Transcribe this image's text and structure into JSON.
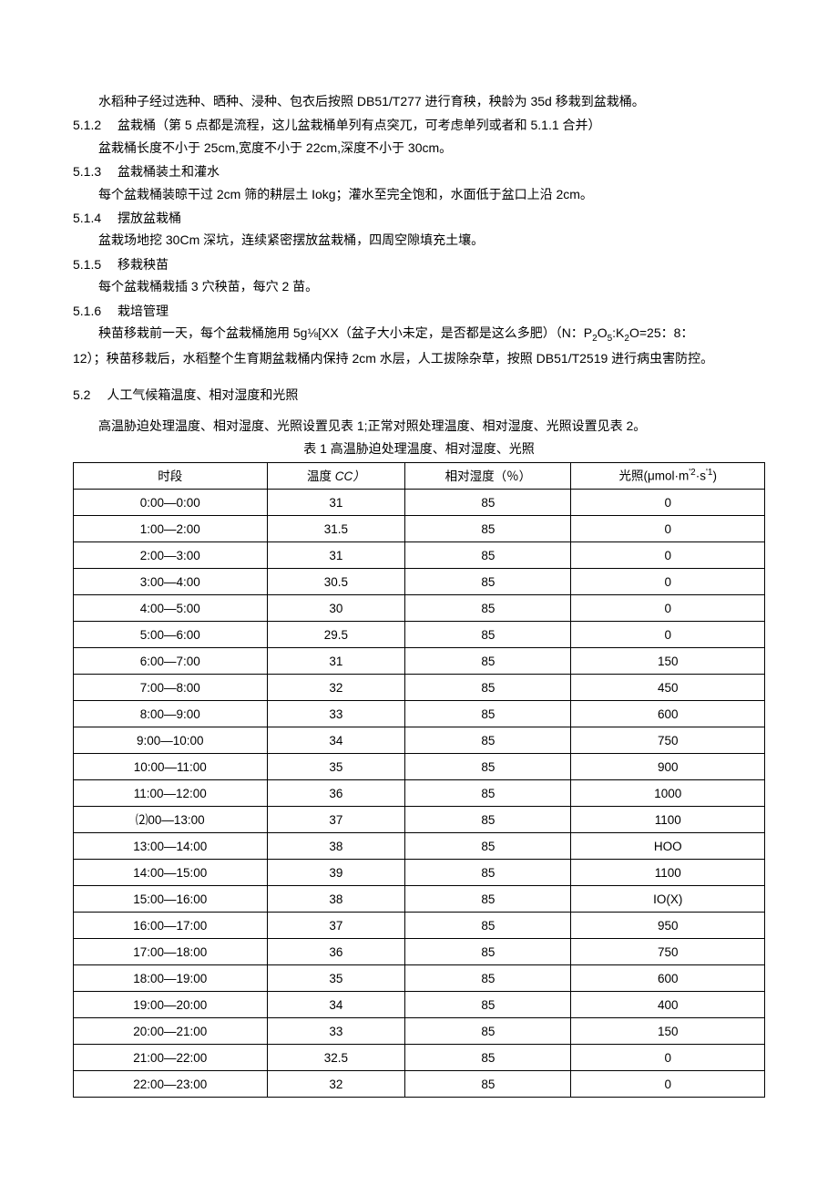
{
  "p_intro": "水稻种子经过选种、晒种、浸种、包衣后按照 DB51/T277 进行育秧，秧龄为 35d 移栽到盆栽桶。",
  "s512_num": "5.1.2",
  "s512_title": "盆栽桶（第 5 点都是流程，这儿盆栽桶单列有点突兀，可考虑单列或者和 5.1.1 合并）",
  "s512_body": "盆栽桶长度不小于 25cm,宽度不小于 22cm,深度不小于 30cm。",
  "s513_num": "5.1.3",
  "s513_title": "盆栽桶装土和灌水",
  "s513_body": "每个盆栽桶装晾干过 2cm 筛的耕层土 Iokg；灌水至完全饱和，水面低于盆口上沿 2cm。",
  "s514_num": "5.1.4",
  "s514_title": "摆放盆栽桶",
  "s514_body": "盆栽场地挖 30Cm 深坑，连续紧密摆放盆栽桶，四周空隙填充土壤。",
  "s515_num": "5.1.5",
  "s515_title": "移栽秧苗",
  "s515_body": "每个盆栽桶栽插 3 穴秧苗，每穴 2 苗。",
  "s516_num": "5.1.6",
  "s516_title": "栽培管理",
  "s516_body1_a": "秧苗移栽前一天，每个盆栽桶施用 5g⅛[XX（盆子大小未定，是否都是这么多肥）（N：P",
  "s516_body1_b": "O",
  "s516_body1_c": ":K",
  "s516_body1_d": "O=25：8：",
  "s516_body2": "12）；秧苗移栽后，水稻整个生育期盆栽桶内保持 2cm 水层，人工拔除杂草，按照 DB51/T2519 进行病虫害防控。",
  "s52_num": "5.2",
  "s52_title": "人工气候箱温度、相对湿度和光照",
  "s52_body": "高温胁迫处理温度、相对湿度、光照设置见表 1;正常对照处理温度、相对湿度、光照设置见表 2。",
  "table_caption": "表 1 高温胁迫处理温度、相对湿度、光照",
  "th1": "时段",
  "th2_a": "温度",
  "th2_b": " CC）",
  "th3": "相对湿度（％）",
  "th4_a": "光照(μmol·m",
  "th4_b": "·s",
  "th4_c": ")",
  "rows": [
    {
      "c1": "0:00—0:00",
      "c2": "31",
      "c3": "85",
      "c4": "0"
    },
    {
      "c1": "1:00—2:00",
      "c2": "31.5",
      "c3": "85",
      "c4": "0"
    },
    {
      "c1": "2:00—3:00",
      "c2": "31",
      "c3": "85",
      "c4": "0"
    },
    {
      "c1": "3:00—4:00",
      "c2": "30.5",
      "c3": "85",
      "c4": "0"
    },
    {
      "c1": "4:00—5:00",
      "c2": "30",
      "c3": "85",
      "c4": "0"
    },
    {
      "c1": "5:00—6:00",
      "c2": "29.5",
      "c3": "85",
      "c4": "0"
    },
    {
      "c1": "6:00—7:00",
      "c2": "31",
      "c3": "85",
      "c4": "150"
    },
    {
      "c1": "7:00—8:00",
      "c2": "32",
      "c3": "85",
      "c4": "450"
    },
    {
      "c1": "8:00—9:00",
      "c2": "33",
      "c3": "85",
      "c4": "600"
    },
    {
      "c1": "9:00—10:00",
      "c2": "34",
      "c3": "85",
      "c4": "750"
    },
    {
      "c1": "10:00—11:00",
      "c2": "35",
      "c3": "85",
      "c4": "900"
    },
    {
      "c1": "11:00—12:00",
      "c2": "36",
      "c3": "85",
      "c4": "1000"
    },
    {
      "c1": "⑵00—13:00",
      "c2": "37",
      "c3": "85",
      "c4": "1100"
    },
    {
      "c1": "13:00—14:00",
      "c2": "38",
      "c3": "85",
      "c4": "HOO"
    },
    {
      "c1": "14:00—15:00",
      "c2": "39",
      "c3": "85",
      "c4": "1100"
    },
    {
      "c1": "15:00—16:00",
      "c2": "38",
      "c3": "85",
      "c4": "IO(X)"
    },
    {
      "c1": "16:00—17:00",
      "c2": "37",
      "c3": "85",
      "c4": "950"
    },
    {
      "c1": "17:00—18:00",
      "c2": "36",
      "c3": "85",
      "c4": "750"
    },
    {
      "c1": "18:00—19:00",
      "c2": "35",
      "c3": "85",
      "c4": "600"
    },
    {
      "c1": "19:00—20:00",
      "c2": "34",
      "c3": "85",
      "c4": "400"
    },
    {
      "c1": "20:00—21:00",
      "c2": "33",
      "c3": "85",
      "c4": "150"
    },
    {
      "c1": "21:00—22:00",
      "c2": "32.5",
      "c3": "85",
      "c4": "0"
    },
    {
      "c1": "22:00—23:00",
      "c2": "32",
      "c3": "85",
      "c4": "0"
    }
  ]
}
